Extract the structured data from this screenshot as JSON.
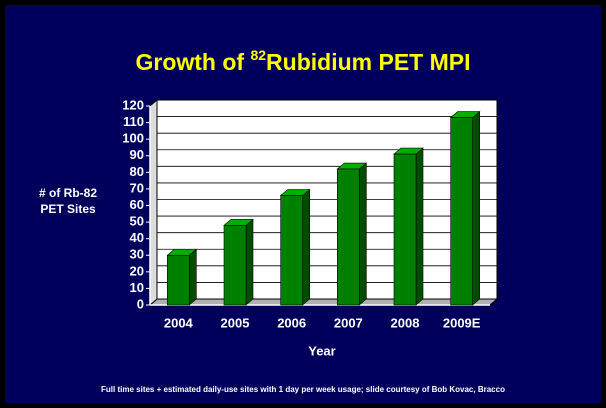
{
  "chart_data": {
    "type": "bar3d",
    "title": [
      "Growth of ",
      "82",
      "Rubidium PET MPI"
    ],
    "y_label": [
      "# of Rb-82",
      "PET Sites"
    ],
    "x_label": "Year",
    "categories": [
      "2004",
      "2005",
      "2006",
      "2007",
      "2008",
      "2009E"
    ],
    "values": [
      30,
      48,
      66,
      82,
      91,
      113
    ],
    "color": "#008000",
    "ylim": [
      0,
      120
    ],
    "yticks": [
      0,
      10,
      20,
      30,
      40,
      50,
      60,
      70,
      80,
      90,
      100,
      110,
      120
    ],
    "grid": true,
    "footnote": "Full time sites + estimated daily-use sites with   1 day per week usage; slide courtesy of Bob Kovac, Bracco"
  }
}
